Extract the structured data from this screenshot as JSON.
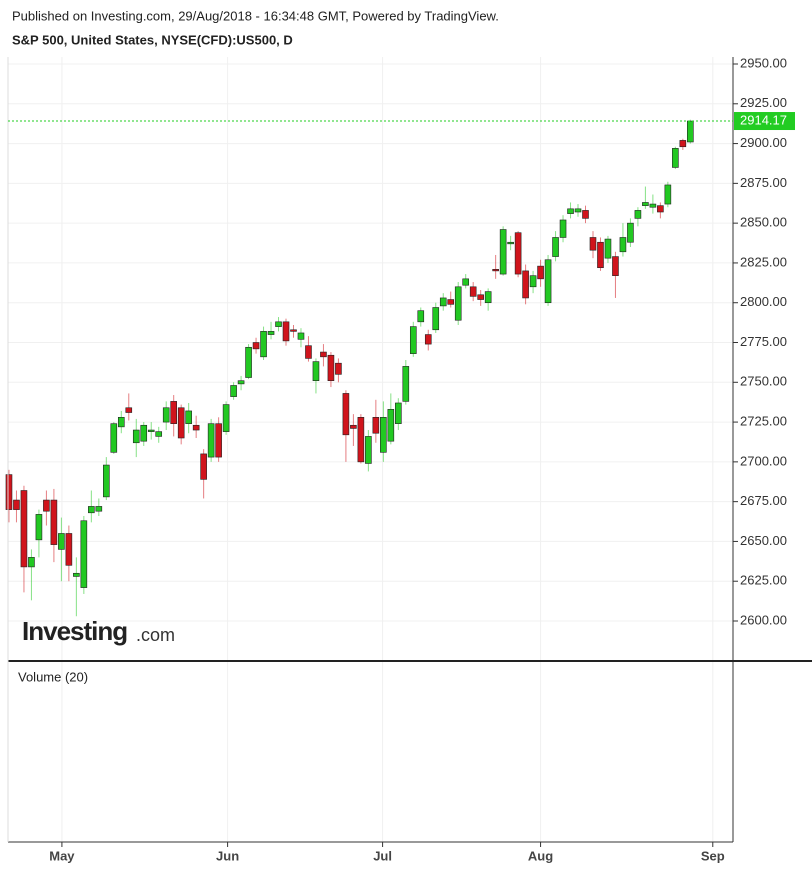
{
  "header": {
    "published": "Published on Investing.com, 29/Aug/2018 - 16:34:48 GMT, Powered by TradingView.",
    "symbol": "S&P 500, United States, NYSE(CFD):US500, D"
  },
  "logo": {
    "brand": "Investing",
    "suffix": ".com"
  },
  "chart_data": {
    "type": "candlestick",
    "up_color": "#22c822",
    "down_color": "#d0141c",
    "open": [
      2692,
      2676,
      2682,
      2634,
      2651,
      2676,
      2676,
      2645,
      2655,
      2628,
      2621,
      2668,
      2669,
      2678,
      2706,
      2722,
      2734,
      2712,
      2713,
      2719,
      2716,
      2725,
      2738,
      2734,
      2724,
      2723,
      2705,
      2703,
      2724,
      2719,
      2741,
      2749,
      2753,
      2775,
      2766,
      2780,
      2785,
      2788,
      2783,
      2777,
      2773,
      2751,
      2769,
      2767,
      2762,
      2743,
      2723,
      2728,
      2699,
      2728,
      2706,
      2713,
      2724,
      2738,
      2768,
      2788,
      2780,
      2783,
      2798,
      2802,
      2789,
      2811,
      2810,
      2805,
      2800,
      2821,
      2818,
      2837,
      2844,
      2820,
      2810,
      2823,
      2800,
      2829,
      2841,
      2856,
      2857,
      2858,
      2841,
      2838,
      2828,
      2829,
      2832,
      2838,
      2853,
      2861,
      2860,
      2861,
      2862,
      2885,
      2902,
      2901
    ],
    "high": [
      2695,
      2682,
      2685,
      2645,
      2670,
      2682,
      2683,
      2665,
      2660,
      2640,
      2666,
      2682,
      2677,
      2703,
      2725,
      2732,
      2743,
      2727,
      2725,
      2725,
      2722,
      2738,
      2742,
      2736,
      2737,
      2729,
      2708,
      2727,
      2728,
      2738,
      2750,
      2754,
      2774,
      2778,
      2785,
      2788,
      2791,
      2790,
      2786,
      2784,
      2779,
      2765,
      2774,
      2769,
      2765,
      2745,
      2730,
      2730,
      2720,
      2739,
      2738,
      2743,
      2740,
      2764,
      2788,
      2797,
      2783,
      2800,
      2806,
      2807,
      2813,
      2818,
      2813,
      2808,
      2809,
      2830,
      2848,
      2842,
      2845,
      2824,
      2820,
      2827,
      2830,
      2845,
      2855,
      2863,
      2862,
      2861,
      2845,
      2841,
      2842,
      2832,
      2850,
      2853,
      2860,
      2873,
      2868,
      2863,
      2876,
      2898,
      2903,
      2915
    ],
    "low": [
      2662,
      2662,
      2618,
      2613,
      2640,
      2660,
      2637,
      2625,
      2625,
      2603,
      2617,
      2662,
      2666,
      2676,
      2705,
      2718,
      2726,
      2703,
      2710,
      2714,
      2712,
      2720,
      2716,
      2711,
      2718,
      2715,
      2677,
      2700,
      2700,
      2717,
      2739,
      2745,
      2752,
      2768,
      2764,
      2777,
      2782,
      2773,
      2778,
      2772,
      2763,
      2743,
      2760,
      2747,
      2750,
      2700,
      2710,
      2699,
      2694,
      2712,
      2700,
      2711,
      2720,
      2736,
      2766,
      2785,
      2770,
      2781,
      2795,
      2797,
      2786,
      2809,
      2801,
      2798,
      2795,
      2815,
      2817,
      2833,
      2816,
      2799,
      2806,
      2810,
      2798,
      2826,
      2838,
      2853,
      2854,
      2850,
      2828,
      2820,
      2825,
      2803,
      2829,
      2835,
      2848,
      2859,
      2856,
      2853,
      2860,
      2884,
      2896,
      2900
    ],
    "close": [
      2670,
      2670,
      2634,
      2640,
      2667,
      2669,
      2648,
      2655,
      2635,
      2630,
      2663,
      2672,
      2672,
      2698,
      2724,
      2728,
      2731,
      2720,
      2723,
      2720,
      2719,
      2734,
      2724,
      2715,
      2732,
      2720,
      2689,
      2724,
      2703,
      2736,
      2748,
      2751,
      2772,
      2771,
      2782,
      2782,
      2788,
      2776,
      2782,
      2781,
      2765,
      2763,
      2766,
      2751,
      2755,
      2717,
      2721,
      2700,
      2716,
      2718,
      2728,
      2733,
      2737,
      2760,
      2785,
      2795,
      2774,
      2797,
      2803,
      2799,
      2810,
      2815,
      2804,
      2802,
      2807,
      2820,
      2846,
      2838,
      2818,
      2803,
      2817,
      2815,
      2827,
      2841,
      2852,
      2859,
      2859,
      2853,
      2833,
      2822,
      2840,
      2817,
      2841,
      2850,
      2858,
      2863,
      2862,
      2857,
      2874,
      2897,
      2898,
      2914.17
    ],
    "last_price": {
      "value": 2914.17,
      "label": "2914.17",
      "color": "#22cc22"
    },
    "ylim": [
      2575.5,
      2954.4
    ],
    "yticks": [
      {
        "value": 2600,
        "label": "2600.00"
      },
      {
        "value": 2625,
        "label": "2625.00"
      },
      {
        "value": 2650,
        "label": "2650.00"
      },
      {
        "value": 2675,
        "label": "2675.00"
      },
      {
        "value": 2700,
        "label": "2700.00"
      },
      {
        "value": 2725,
        "label": "2725.00"
      },
      {
        "value": 2750,
        "label": "2750.00"
      },
      {
        "value": 2775,
        "label": "2775.00"
      },
      {
        "value": 2800,
        "label": "2800.00"
      },
      {
        "value": 2825,
        "label": "2825.00"
      },
      {
        "value": 2850,
        "label": "2850.00"
      },
      {
        "value": 2875,
        "label": "2875.00"
      },
      {
        "value": 2900,
        "label": "2900.00"
      },
      {
        "value": 2925,
        "label": "2925.00"
      },
      {
        "value": 2950,
        "label": "2950.00"
      }
    ],
    "xlim": [
      -0.13,
      96.7
    ],
    "xticks": [
      {
        "value": 7.07,
        "label": "May"
      },
      {
        "value": 29.2,
        "label": "Jun"
      },
      {
        "value": 49.9,
        "label": "Jul"
      },
      {
        "value": 71,
        "label": "Aug"
      },
      {
        "value": 94,
        "label": "Sep"
      }
    ],
    "grid": true,
    "volume_label": "Volume (20)"
  }
}
